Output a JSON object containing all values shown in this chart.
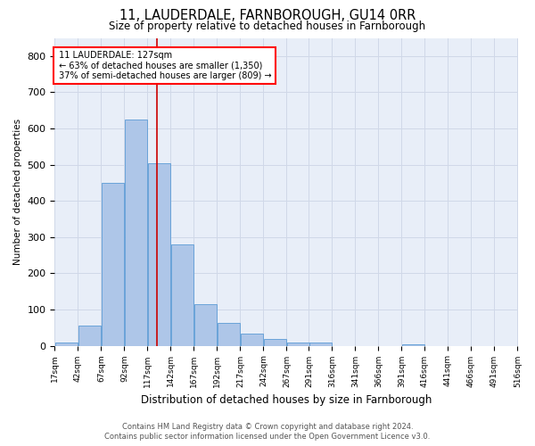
{
  "title1": "11, LAUDERDALE, FARNBOROUGH, GU14 0RR",
  "title2": "Size of property relative to detached houses in Farnborough",
  "xlabel": "Distribution of detached houses by size in Farnborough",
  "ylabel": "Number of detached properties",
  "annotation_line1": "11 LAUDERDALE: 127sqm",
  "annotation_line2": "← 63% of detached houses are smaller (1,350)",
  "annotation_line3": "37% of semi-detached houses are larger (809) →",
  "bar_color": "#aec6e8",
  "bar_edge_color": "#5b9bd5",
  "vline_color": "#cc0000",
  "vline_x": 127,
  "bin_edges": [
    17,
    42,
    67,
    92,
    117,
    142,
    167,
    192,
    217,
    242,
    267,
    291,
    316,
    341,
    366,
    391,
    416,
    441,
    466,
    491,
    516
  ],
  "bar_heights": [
    10,
    55,
    450,
    625,
    505,
    280,
    115,
    63,
    33,
    18,
    8,
    8,
    0,
    0,
    0,
    5,
    0,
    0,
    0,
    0
  ],
  "ylim": [
    0,
    850
  ],
  "yticks": [
    0,
    100,
    200,
    300,
    400,
    500,
    600,
    700,
    800
  ],
  "grid_color": "#d0d8e8",
  "background_color": "#e8eef8",
  "footer1": "Contains HM Land Registry data © Crown copyright and database right 2024.",
  "footer2": "Contains public sector information licensed under the Open Government Licence v3.0."
}
